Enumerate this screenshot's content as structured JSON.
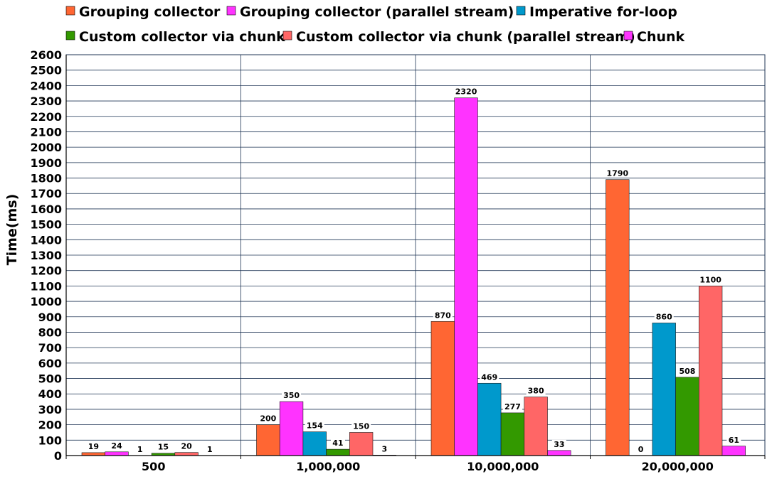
{
  "chart_data": {
    "type": "bar",
    "title": "",
    "xlabel": "",
    "ylabel": "Time(ms)",
    "ylim": [
      0,
      2600
    ],
    "ytick_step": 100,
    "grid": true,
    "legend_position": "top",
    "categories": [
      "500",
      "1,000,000",
      "10,000,000",
      "20,000,000"
    ],
    "series": [
      {
        "name": "Grouping collector",
        "color": "#ff6633",
        "values": [
          19,
          200,
          870,
          1790
        ]
      },
      {
        "name": "Grouping collector (parallel stream)",
        "color": "#ff33ff",
        "values": [
          24,
          350,
          2320,
          0
        ]
      },
      {
        "name": "Imperative for-loop",
        "color": "#0099cc",
        "values": [
          1,
          154,
          469,
          860
        ]
      },
      {
        "name": "Custom collector via chunk",
        "color": "#339900",
        "values": [
          15,
          41,
          277,
          508
        ]
      },
      {
        "name": "Custom collector via chunk (parallel stream)",
        "color": "#ff6666",
        "values": [
          20,
          150,
          380,
          1100
        ]
      },
      {
        "name": "Chunk",
        "color": "#ff33ff",
        "values": [
          1,
          3,
          33,
          61
        ]
      }
    ]
  }
}
